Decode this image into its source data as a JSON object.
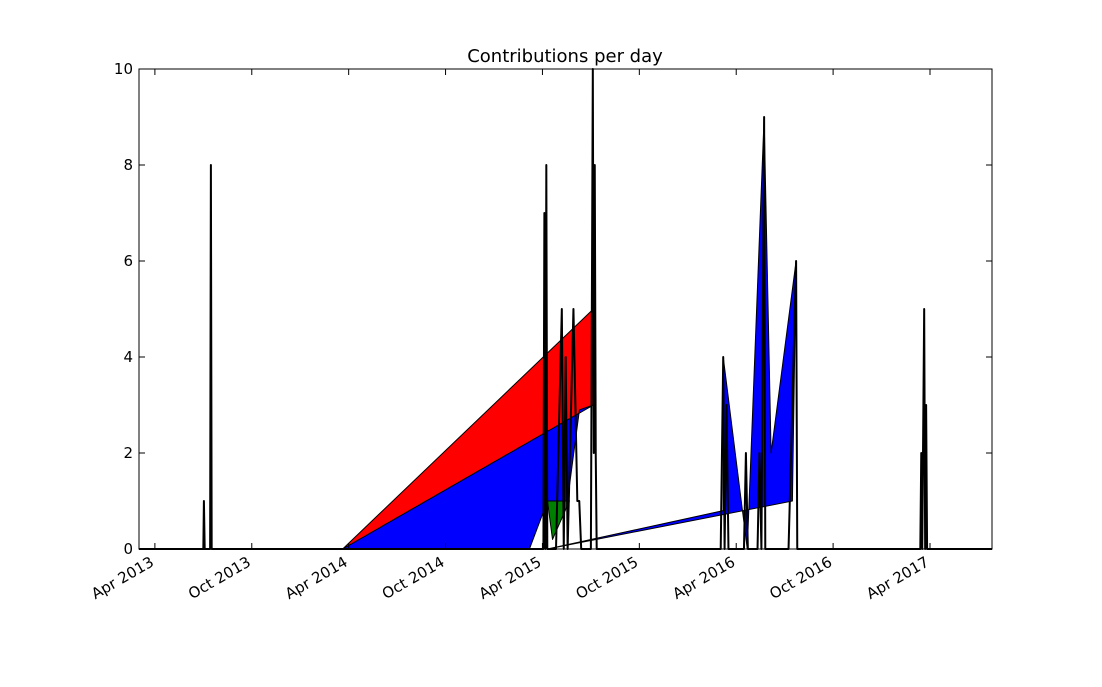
{
  "chart_data": {
    "type": "line",
    "title": "Contributions per day",
    "xlim": [
      2013.168,
      2017.57
    ],
    "ylim": [
      0,
      10
    ],
    "yticks": [
      0,
      2,
      4,
      6,
      8,
      10
    ],
    "xticks": [
      {
        "value": 2013.25,
        "label": "Apr 2013"
      },
      {
        "value": 2013.75,
        "label": "Oct 2013"
      },
      {
        "value": 2014.25,
        "label": "Apr 2014"
      },
      {
        "value": 2014.75,
        "label": "Oct 2014"
      },
      {
        "value": 2015.25,
        "label": "Apr 2015"
      },
      {
        "value": 2015.75,
        "label": "Oct 2015"
      },
      {
        "value": 2016.25,
        "label": "Apr 2016"
      },
      {
        "value": 2016.75,
        "label": "Oct 2016"
      },
      {
        "value": 2017.25,
        "label": "Apr 2017"
      }
    ],
    "series": [
      {
        "color": "#ff0000",
        "fill": true,
        "x": [
          2014.219,
          2015.513,
          2015.513
        ],
        "values": [
          0,
          5,
          3
        ]
      },
      {
        "color": "#0000ff",
        "fill": true,
        "x": [
          2014.219,
          2015.513,
          2015.441,
          2015.379,
          2015.276,
          2015.183
        ],
        "values": [
          0,
          3,
          2.9,
          1,
          1,
          0
        ]
      },
      {
        "color": "#008000",
        "fill": true,
        "x": [
          2015.276,
          2015.389,
          2015.302
        ],
        "values": [
          1,
          1,
          0.2
        ]
      },
      {
        "color": "#0000ff",
        "fill": true,
        "x": [
          2015.276,
          2016.183,
          2016.183,
          2016.307,
          2016.394,
          2016.43,
          2016.559,
          2016.54
        ],
        "values": [
          0,
          0.8,
          4,
          0,
          9,
          2,
          6,
          1
        ]
      },
      {
        "color": "#000000",
        "fill": false,
        "x": [
          2013.168,
          2013.5,
          2013.503,
          2013.507,
          2013.535,
          2013.539,
          2013.543,
          2015.255,
          2015.26,
          2015.265,
          2015.27,
          2015.275,
          2015.32,
          2015.35,
          2015.36,
          2015.37,
          2015.38,
          2015.41,
          2015.43,
          2015.44,
          2015.45,
          2015.5,
          2015.51,
          2015.515,
          2015.52,
          2015.525,
          2015.53,
          2016.17,
          2016.183,
          2016.19,
          2016.2,
          2016.21,
          2016.29,
          2016.3,
          2016.31,
          2016.36,
          2016.37,
          2016.38,
          2016.394,
          2016.4,
          2016.52,
          2016.559,
          2016.565,
          2017.2,
          2017.205,
          2017.21,
          2017.22,
          2017.225,
          2017.23,
          2017.235,
          2017.57
        ],
        "values": [
          0,
          0,
          1,
          0,
          0,
          8,
          0,
          0,
          7,
          0,
          8,
          0,
          0,
          5,
          0,
          4,
          0,
          5,
          1,
          1,
          0,
          0,
          10,
          2,
          8,
          2,
          0,
          0,
          4,
          0,
          3,
          0,
          0,
          2,
          0,
          0,
          2,
          0,
          9,
          0,
          0,
          6,
          0,
          0,
          2,
          0,
          5,
          0,
          3,
          0,
          0
        ]
      }
    ]
  }
}
